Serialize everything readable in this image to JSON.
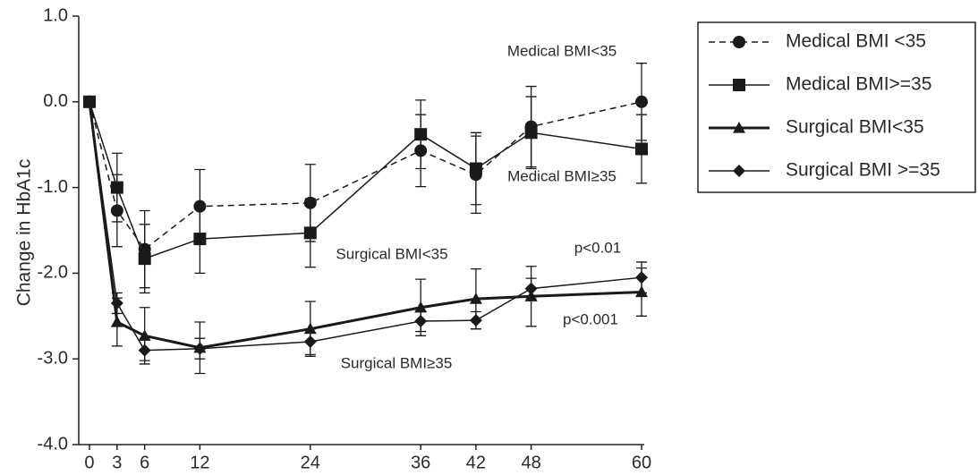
{
  "chart_data": {
    "type": "line",
    "y_label": "Change in HbA1c",
    "x": [
      0,
      3,
      6,
      12,
      24,
      36,
      42,
      48,
      60
    ],
    "xlim": [
      -1,
      60
    ],
    "xticks": [
      0,
      3,
      6,
      12,
      24,
      36,
      42,
      48,
      60
    ],
    "ylim": [
      -4,
      1
    ],
    "yticks": [
      {
        "value": -4,
        "label": "-4.0"
      },
      {
        "value": -3,
        "label": "-3.0"
      },
      {
        "value": -2,
        "label": "-2.0"
      },
      {
        "value": -1,
        "label": "-1.0"
      },
      {
        "value": 0,
        "label": "0.0"
      },
      {
        "value": 1,
        "label": "1.0"
      }
    ],
    "series": [
      {
        "name": "Medical BMI <35",
        "color": "#1a1a1a",
        "dash": true,
        "line_width": 1.5,
        "marker": "circle",
        "values": [
          0,
          -1.27,
          -1.72,
          -1.22,
          -1.18,
          -0.57,
          -0.85,
          -0.29,
          0.0
        ],
        "errors": [
          null,
          0.42,
          0.45,
          0.43,
          0.45,
          0.42,
          0.45,
          0.47,
          0.45
        ]
      },
      {
        "name": "Medical BMI>=35",
        "color": "#1a1a1a",
        "dash": false,
        "line_width": 1.5,
        "marker": "square",
        "values": [
          0,
          -1.0,
          -1.83,
          -1.6,
          -1.53,
          -0.38,
          -0.78,
          -0.36,
          -0.55
        ],
        "errors": [
          null,
          0.4,
          0.4,
          0.4,
          0.4,
          0.4,
          0.42,
          0.42,
          0.4
        ]
      },
      {
        "name": "Surgical BMI<35",
        "color": "#1a1a1a",
        "dash": false,
        "line_width": 3,
        "marker": "triangle",
        "values": [
          0,
          -2.57,
          -2.73,
          -2.87,
          -2.65,
          -2.4,
          -2.3,
          -2.27,
          -2.22
        ],
        "errors": [
          null,
          0.28,
          0.33,
          0.3,
          0.32,
          0.33,
          0.35,
          0.35,
          0.28
        ]
      },
      {
        "name": "Surgical BMI >=35",
        "color": "#1a1a1a",
        "dash": false,
        "line_width": 1.5,
        "marker": "diamond",
        "values": [
          0,
          -2.35,
          -2.9,
          -2.88,
          -2.8,
          -2.56,
          -2.55,
          -2.18,
          -2.05
        ],
        "errors": [
          null,
          0.12,
          0.12,
          0.12,
          0.15,
          0.12,
          0.1,
          0.12,
          0.18
        ]
      }
    ],
    "annotations": [
      "Medical BMI<35",
      "Medical BMI≥35",
      "Surgical BMI<35",
      "p<0.01",
      "p<0.001",
      "Surgical BMI≥35"
    ],
    "legend": "upper right"
  }
}
